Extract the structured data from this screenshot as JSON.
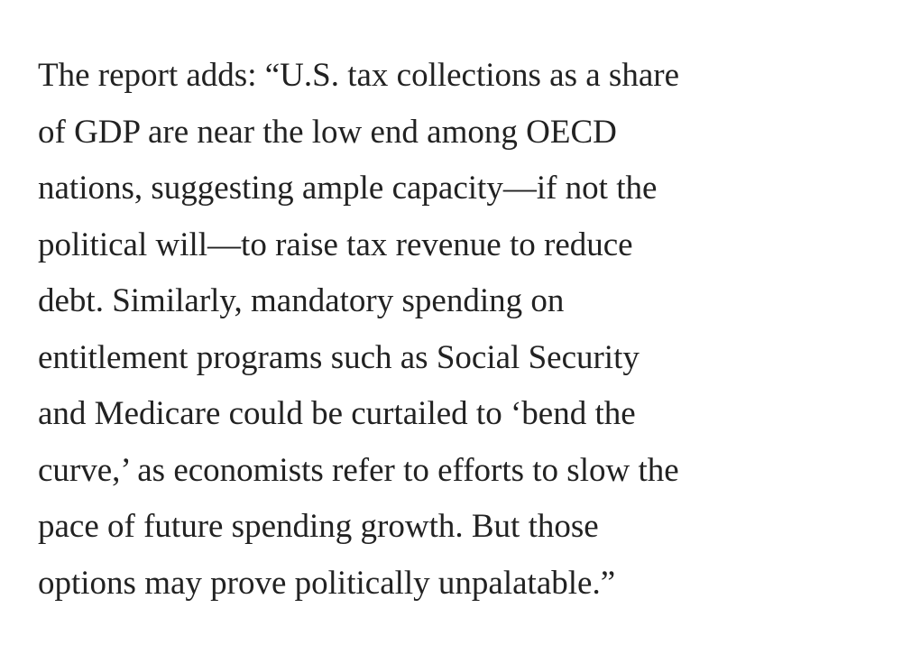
{
  "paragraph": {
    "lines": [
      "The report adds: “U.S. tax collections as a share",
      "of GDP are near the low end among OECD",
      "nations, suggesting ample capacity—if not the",
      "political will—to raise tax revenue to reduce",
      "debt. Similarly, mandatory spending on",
      "entitlement programs such as Social Security",
      "and Medicare could be curtailed to ‘bend the",
      "curve,’ as economists refer to efforts to slow the",
      "pace of future spending growth. But those",
      "options may prove politically unpalatable.”"
    ]
  }
}
